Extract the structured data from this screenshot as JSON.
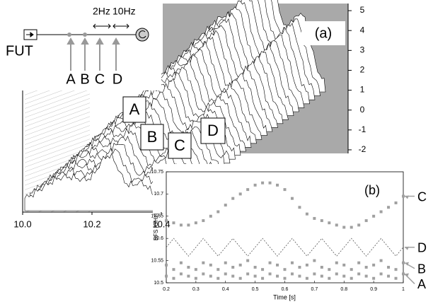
{
  "chart_data": [
    {
      "type": "waterfall",
      "panel_label": "(a)",
      "xlim": [
        10.0,
        10.4
      ],
      "xticks": [
        {
          "value": 10.0,
          "label": "10.0"
        },
        10.2,
        10.4
      ],
      "ylim": [
        -2.5,
        5.5
      ],
      "yticks": [
        5,
        4,
        3,
        2,
        1,
        0,
        -1,
        -2
      ],
      "peak_labels": [
        "A",
        "B",
        "C",
        "D"
      ],
      "inset": {
        "source": "FUT",
        "frequencies": [
          "2Hz",
          "10Hz"
        ],
        "points": [
          "A",
          "B",
          "C",
          "D"
        ]
      }
    },
    {
      "type": "scatter",
      "panel_label": "(b)",
      "x_label": "Time [s]",
      "y_label": "BFS [GHz]",
      "xlim": [
        0.2,
        1
      ],
      "xticks": [
        0.2,
        0.3,
        0.4,
        0.5,
        0.6,
        0.7,
        0.8,
        0.9,
        1
      ],
      "ylim": [
        10.5,
        10.75
      ],
      "yticks": [
        10.5,
        10.55,
        10.6,
        10.65,
        10.7,
        10.75
      ],
      "x": [
        0.2,
        0.225,
        0.25,
        0.275,
        0.3,
        0.325,
        0.35,
        0.375,
        0.4,
        0.425,
        0.45,
        0.475,
        0.5,
        0.525,
        0.55,
        0.575,
        0.6,
        0.625,
        0.65,
        0.675,
        0.7,
        0.725,
        0.75,
        0.775,
        0.8,
        0.825,
        0.85,
        0.875,
        0.9,
        0.925,
        0.95,
        0.975,
        1.0
      ],
      "series": [
        {
          "name": "C",
          "color": "#a0a0a0",
          "values": [
            10.64,
            10.635,
            10.63,
            10.63,
            10.635,
            10.64,
            10.65,
            10.66,
            10.675,
            10.69,
            10.7,
            10.71,
            10.72,
            10.725,
            10.725,
            10.72,
            10.71,
            10.69,
            10.67,
            10.655,
            10.645,
            10.64,
            10.635,
            10.63,
            10.625,
            10.625,
            10.63,
            10.64,
            10.65,
            10.66,
            10.67,
            10.68,
            10.695
          ]
        },
        {
          "name": "D",
          "color": "#a0a0a0",
          "line": true,
          "values": [
            10.58,
            10.6,
            10.58,
            10.56,
            10.58,
            10.6,
            10.58,
            10.56,
            10.58,
            10.6,
            10.58,
            10.56,
            10.58,
            10.6,
            10.58,
            10.56,
            10.58,
            10.6,
            10.58,
            10.56,
            10.58,
            10.6,
            10.58,
            10.56,
            10.58,
            10.6,
            10.58,
            10.56,
            10.58,
            10.6,
            10.58,
            10.56,
            10.58
          ]
        },
        {
          "name": "B",
          "color": "#a0a0a0",
          "values": [
            10.54,
            10.53,
            10.545,
            10.535,
            10.53,
            10.545,
            10.54,
            10.53,
            10.545,
            10.535,
            10.54,
            10.55,
            10.535,
            10.53,
            10.545,
            10.54,
            10.53,
            10.545,
            10.535,
            10.54,
            10.55,
            10.535,
            10.53,
            10.545,
            10.54,
            10.53,
            10.545,
            10.535,
            10.54,
            10.55,
            10.535,
            10.53,
            10.545
          ]
        },
        {
          "name": "A",
          "color": "#a0a0a0",
          "values": [
            10.515,
            10.51,
            10.52,
            10.515,
            10.51,
            10.52,
            10.515,
            10.51,
            10.52,
            10.515,
            10.51,
            10.52,
            10.515,
            10.51,
            10.52,
            10.515,
            10.51,
            10.52,
            10.515,
            10.51,
            10.52,
            10.515,
            10.51,
            10.52,
            10.515,
            10.51,
            10.52,
            10.515,
            10.51,
            10.52,
            10.515,
            10.51,
            10.52
          ]
        }
      ]
    }
  ]
}
